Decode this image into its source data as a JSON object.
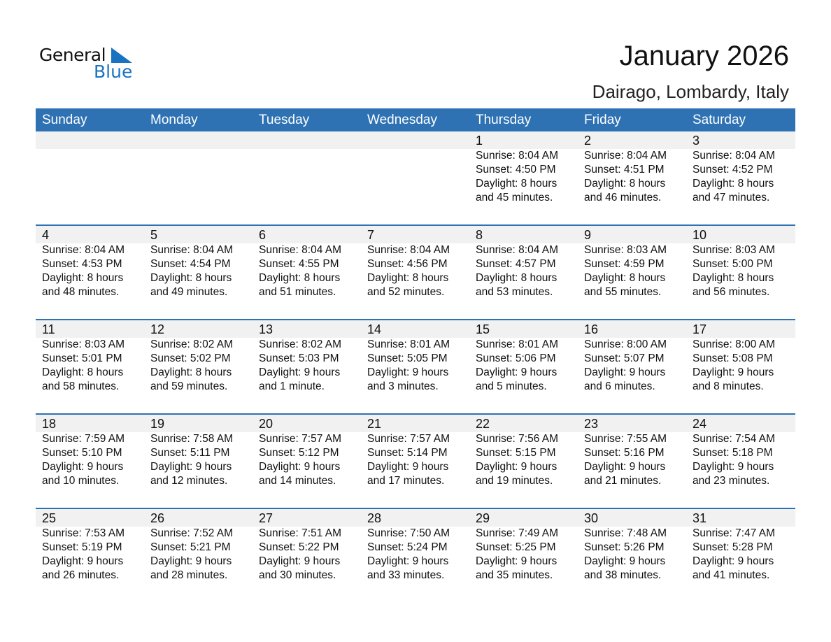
{
  "logo": {
    "text1": "General",
    "text2": "Blue",
    "color": "#1a73c0"
  },
  "title": "January 2026",
  "location": "Dairago, Lombardy, Italy",
  "header_color": "#2E72B3",
  "days": [
    "Sunday",
    "Monday",
    "Tuesday",
    "Wednesday",
    "Thursday",
    "Friday",
    "Saturday"
  ],
  "weeks": [
    [
      null,
      null,
      null,
      null,
      {
        "d": "1",
        "sr": "Sunrise: 8:04 AM",
        "ss": "Sunset: 4:50 PM",
        "dl": "Daylight: 8 hours",
        "dm": "and 45 minutes."
      },
      {
        "d": "2",
        "sr": "Sunrise: 8:04 AM",
        "ss": "Sunset: 4:51 PM",
        "dl": "Daylight: 8 hours",
        "dm": "and 46 minutes."
      },
      {
        "d": "3",
        "sr": "Sunrise: 8:04 AM",
        "ss": "Sunset: 4:52 PM",
        "dl": "Daylight: 8 hours",
        "dm": "and 47 minutes."
      }
    ],
    [
      {
        "d": "4",
        "sr": "Sunrise: 8:04 AM",
        "ss": "Sunset: 4:53 PM",
        "dl": "Daylight: 8 hours",
        "dm": "and 48 minutes."
      },
      {
        "d": "5",
        "sr": "Sunrise: 8:04 AM",
        "ss": "Sunset: 4:54 PM",
        "dl": "Daylight: 8 hours",
        "dm": "and 49 minutes."
      },
      {
        "d": "6",
        "sr": "Sunrise: 8:04 AM",
        "ss": "Sunset: 4:55 PM",
        "dl": "Daylight: 8 hours",
        "dm": "and 51 minutes."
      },
      {
        "d": "7",
        "sr": "Sunrise: 8:04 AM",
        "ss": "Sunset: 4:56 PM",
        "dl": "Daylight: 8 hours",
        "dm": "and 52 minutes."
      },
      {
        "d": "8",
        "sr": "Sunrise: 8:04 AM",
        "ss": "Sunset: 4:57 PM",
        "dl": "Daylight: 8 hours",
        "dm": "and 53 minutes."
      },
      {
        "d": "9",
        "sr": "Sunrise: 8:03 AM",
        "ss": "Sunset: 4:59 PM",
        "dl": "Daylight: 8 hours",
        "dm": "and 55 minutes."
      },
      {
        "d": "10",
        "sr": "Sunrise: 8:03 AM",
        "ss": "Sunset: 5:00 PM",
        "dl": "Daylight: 8 hours",
        "dm": "and 56 minutes."
      }
    ],
    [
      {
        "d": "11",
        "sr": "Sunrise: 8:03 AM",
        "ss": "Sunset: 5:01 PM",
        "dl": "Daylight: 8 hours",
        "dm": "and 58 minutes."
      },
      {
        "d": "12",
        "sr": "Sunrise: 8:02 AM",
        "ss": "Sunset: 5:02 PM",
        "dl": "Daylight: 8 hours",
        "dm": "and 59 minutes."
      },
      {
        "d": "13",
        "sr": "Sunrise: 8:02 AM",
        "ss": "Sunset: 5:03 PM",
        "dl": "Daylight: 9 hours",
        "dm": "and 1 minute."
      },
      {
        "d": "14",
        "sr": "Sunrise: 8:01 AM",
        "ss": "Sunset: 5:05 PM",
        "dl": "Daylight: 9 hours",
        "dm": "and 3 minutes."
      },
      {
        "d": "15",
        "sr": "Sunrise: 8:01 AM",
        "ss": "Sunset: 5:06 PM",
        "dl": "Daylight: 9 hours",
        "dm": "and 5 minutes."
      },
      {
        "d": "16",
        "sr": "Sunrise: 8:00 AM",
        "ss": "Sunset: 5:07 PM",
        "dl": "Daylight: 9 hours",
        "dm": "and 6 minutes."
      },
      {
        "d": "17",
        "sr": "Sunrise: 8:00 AM",
        "ss": "Sunset: 5:08 PM",
        "dl": "Daylight: 9 hours",
        "dm": "and 8 minutes."
      }
    ],
    [
      {
        "d": "18",
        "sr": "Sunrise: 7:59 AM",
        "ss": "Sunset: 5:10 PM",
        "dl": "Daylight: 9 hours",
        "dm": "and 10 minutes."
      },
      {
        "d": "19",
        "sr": "Sunrise: 7:58 AM",
        "ss": "Sunset: 5:11 PM",
        "dl": "Daylight: 9 hours",
        "dm": "and 12 minutes."
      },
      {
        "d": "20",
        "sr": "Sunrise: 7:57 AM",
        "ss": "Sunset: 5:12 PM",
        "dl": "Daylight: 9 hours",
        "dm": "and 14 minutes."
      },
      {
        "d": "21",
        "sr": "Sunrise: 7:57 AM",
        "ss": "Sunset: 5:14 PM",
        "dl": "Daylight: 9 hours",
        "dm": "and 17 minutes."
      },
      {
        "d": "22",
        "sr": "Sunrise: 7:56 AM",
        "ss": "Sunset: 5:15 PM",
        "dl": "Daylight: 9 hours",
        "dm": "and 19 minutes."
      },
      {
        "d": "23",
        "sr": "Sunrise: 7:55 AM",
        "ss": "Sunset: 5:16 PM",
        "dl": "Daylight: 9 hours",
        "dm": "and 21 minutes."
      },
      {
        "d": "24",
        "sr": "Sunrise: 7:54 AM",
        "ss": "Sunset: 5:18 PM",
        "dl": "Daylight: 9 hours",
        "dm": "and 23 minutes."
      }
    ],
    [
      {
        "d": "25",
        "sr": "Sunrise: 7:53 AM",
        "ss": "Sunset: 5:19 PM",
        "dl": "Daylight: 9 hours",
        "dm": "and 26 minutes."
      },
      {
        "d": "26",
        "sr": "Sunrise: 7:52 AM",
        "ss": "Sunset: 5:21 PM",
        "dl": "Daylight: 9 hours",
        "dm": "and 28 minutes."
      },
      {
        "d": "27",
        "sr": "Sunrise: 7:51 AM",
        "ss": "Sunset: 5:22 PM",
        "dl": "Daylight: 9 hours",
        "dm": "and 30 minutes."
      },
      {
        "d": "28",
        "sr": "Sunrise: 7:50 AM",
        "ss": "Sunset: 5:24 PM",
        "dl": "Daylight: 9 hours",
        "dm": "and 33 minutes."
      },
      {
        "d": "29",
        "sr": "Sunrise: 7:49 AM",
        "ss": "Sunset: 5:25 PM",
        "dl": "Daylight: 9 hours",
        "dm": "and 35 minutes."
      },
      {
        "d": "30",
        "sr": "Sunrise: 7:48 AM",
        "ss": "Sunset: 5:26 PM",
        "dl": "Daylight: 9 hours",
        "dm": "and 38 minutes."
      },
      {
        "d": "31",
        "sr": "Sunrise: 7:47 AM",
        "ss": "Sunset: 5:28 PM",
        "dl": "Daylight: 9 hours",
        "dm": "and 41 minutes."
      }
    ]
  ]
}
